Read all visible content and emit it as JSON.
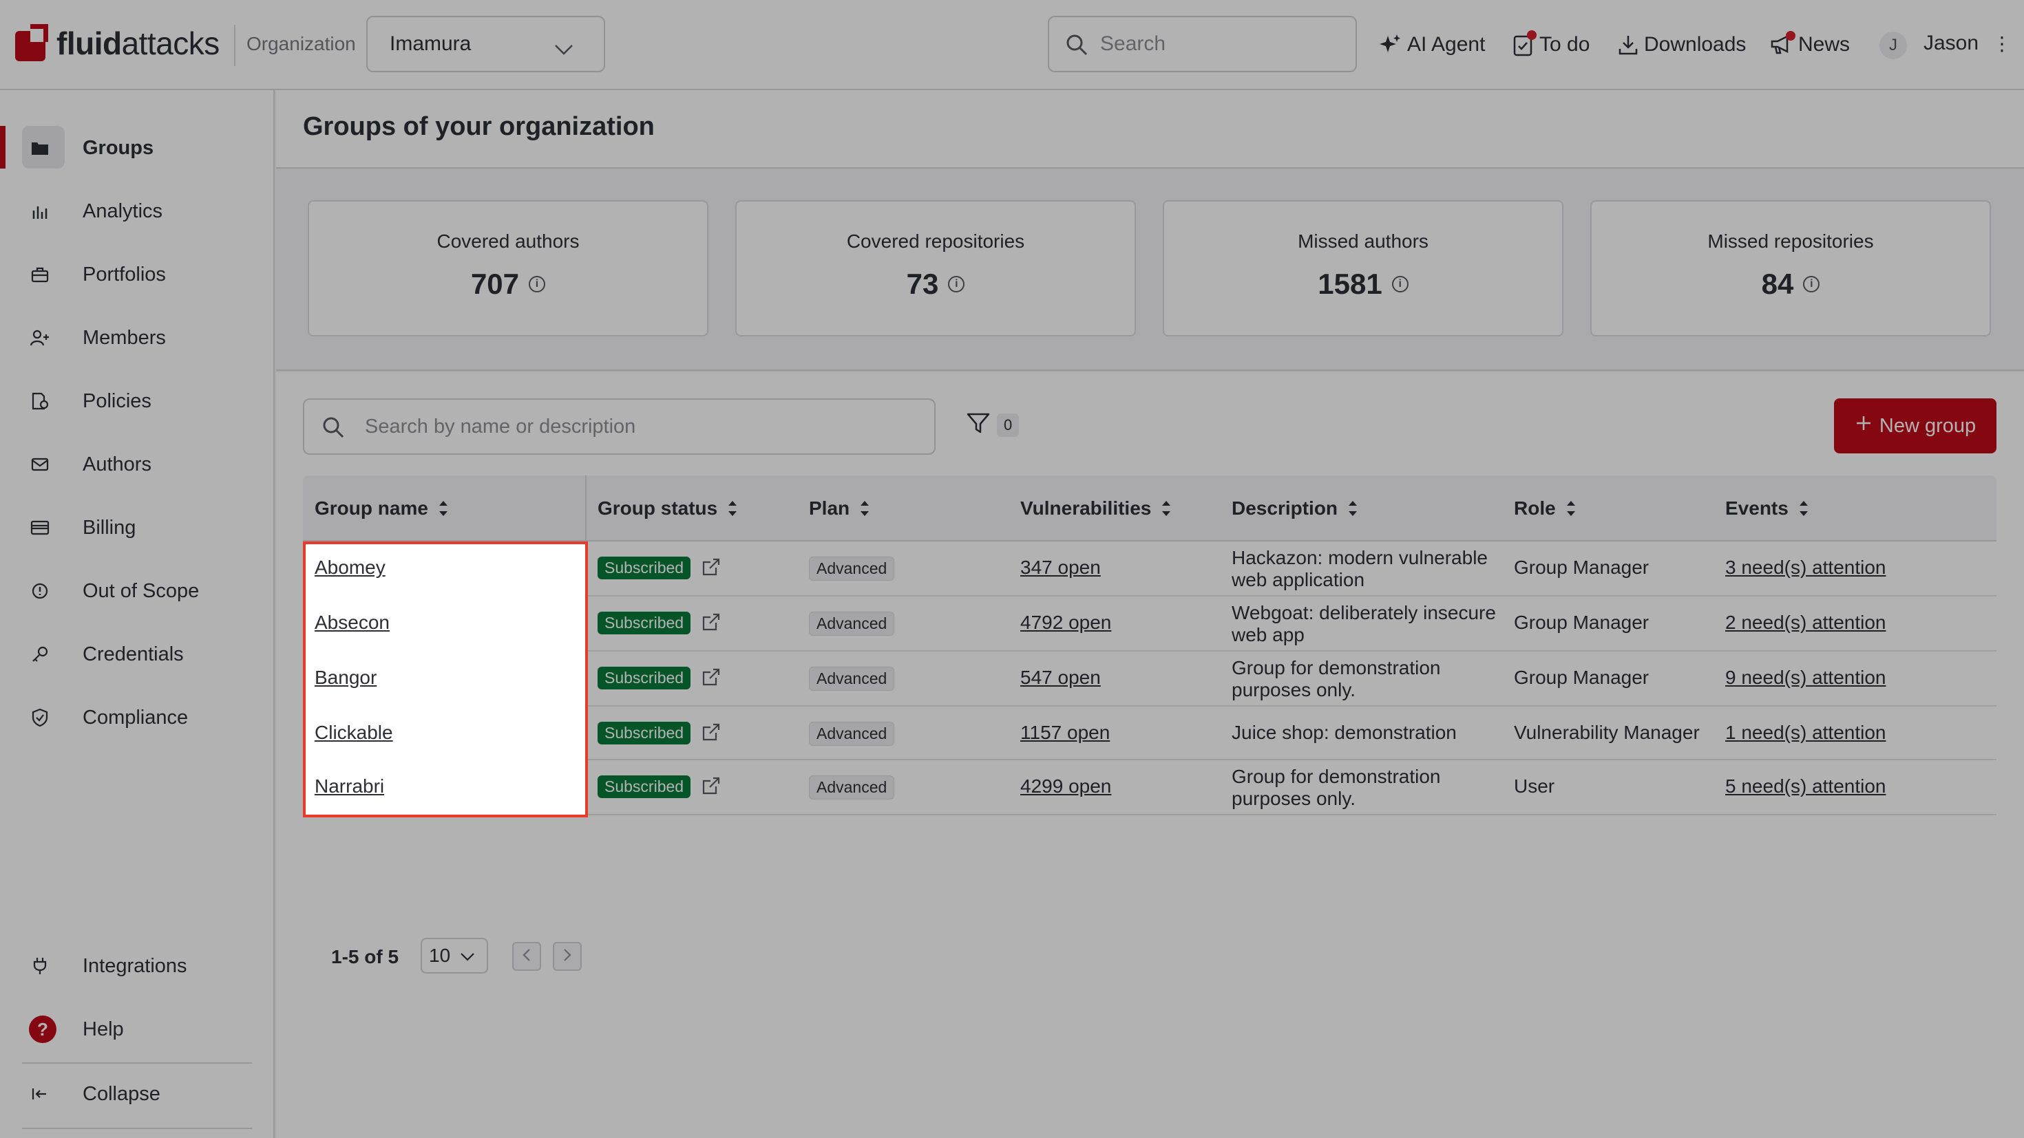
{
  "header": {
    "logo_bold": "fluid",
    "logo_light": "attacks",
    "org_label": "Organization",
    "org_value": "Imamura",
    "search_placeholder": "Search",
    "nav": [
      {
        "label": "AI Agent",
        "icon": "sparkle-icon"
      },
      {
        "label": "To do",
        "icon": "clipboard-check-icon"
      },
      {
        "label": "Downloads",
        "icon": "download-icon"
      },
      {
        "label": "News",
        "icon": "megaphone-icon"
      }
    ],
    "user_initial": "J",
    "user_name": "Jason",
    "menu_glyph": "⋮"
  },
  "sidebar": {
    "items": [
      {
        "label": "Groups",
        "icon": "folder-icon",
        "active": true
      },
      {
        "label": "Analytics",
        "icon": "bar-chart-icon"
      },
      {
        "label": "Portfolios",
        "icon": "briefcase-icon"
      },
      {
        "label": "Members",
        "icon": "user-plus-icon"
      },
      {
        "label": "Policies",
        "icon": "policy-document-icon"
      },
      {
        "label": "Authors",
        "icon": "mail-icon"
      },
      {
        "label": "Billing",
        "icon": "credit-card-icon"
      },
      {
        "label": "Out of Scope",
        "icon": "alert-circle-icon"
      },
      {
        "label": "Credentials",
        "icon": "key-icon"
      },
      {
        "label": "Compliance",
        "icon": "shield-check-icon"
      }
    ],
    "bottom": [
      {
        "label": "Integrations",
        "icon": "plug-icon"
      },
      {
        "label": "Help",
        "icon": "help-icon"
      },
      {
        "label": "Collapse",
        "icon": "collapse-icon"
      }
    ],
    "help_glyph": "?"
  },
  "page": {
    "title": "Groups of your organization"
  },
  "stats": [
    {
      "label": "Covered authors",
      "value": "707"
    },
    {
      "label": "Covered repositories",
      "value": "73"
    },
    {
      "label": "Missed authors",
      "value": "1581"
    },
    {
      "label": "Missed repositories",
      "value": "84"
    }
  ],
  "info_glyph": "i",
  "toolbar": {
    "search_placeholder": "Search by name or description",
    "filter_count": "0",
    "new_group_label": "New group"
  },
  "table": {
    "columns": [
      "Group name",
      "Group status",
      "Plan",
      "Vulnerabilities",
      "Description",
      "Role",
      "Events"
    ],
    "rows": [
      {
        "name": "Abomey",
        "status": "Subscribed",
        "plan": "Advanced",
        "vulns": "347 open",
        "desc": "Hackazon: modern vulnerable web application",
        "role": "Group Manager",
        "events": "3 need(s) attention"
      },
      {
        "name": "Absecon",
        "status": "Subscribed",
        "plan": "Advanced",
        "vulns": "4792 open",
        "desc": "Webgoat: deliberately insecure web app",
        "role": "Group Manager",
        "events": "2 need(s) attention"
      },
      {
        "name": "Bangor",
        "status": "Subscribed",
        "plan": "Advanced",
        "vulns": "547 open",
        "desc": "Group for demonstration purposes only.",
        "role": "Group Manager",
        "events": "9 need(s) attention"
      },
      {
        "name": "Clickable",
        "status": "Subscribed",
        "plan": "Advanced",
        "vulns": "1157 open",
        "desc": "Juice shop: demonstration",
        "role": "Vulnerability Manager",
        "events": "1 need(s) attention"
      },
      {
        "name": "Narrabri",
        "status": "Subscribed",
        "plan": "Advanced",
        "vulns": "4299 open",
        "desc": "Group for demonstration purposes only.",
        "role": "User",
        "events": "5 need(s) attention"
      }
    ]
  },
  "pagination": {
    "range": "1-5 of 5",
    "per_page": "10"
  },
  "colors": {
    "brand": "#bf0b1a",
    "subscribed": "#0a7a3c",
    "highlight": "#e8392b"
  }
}
